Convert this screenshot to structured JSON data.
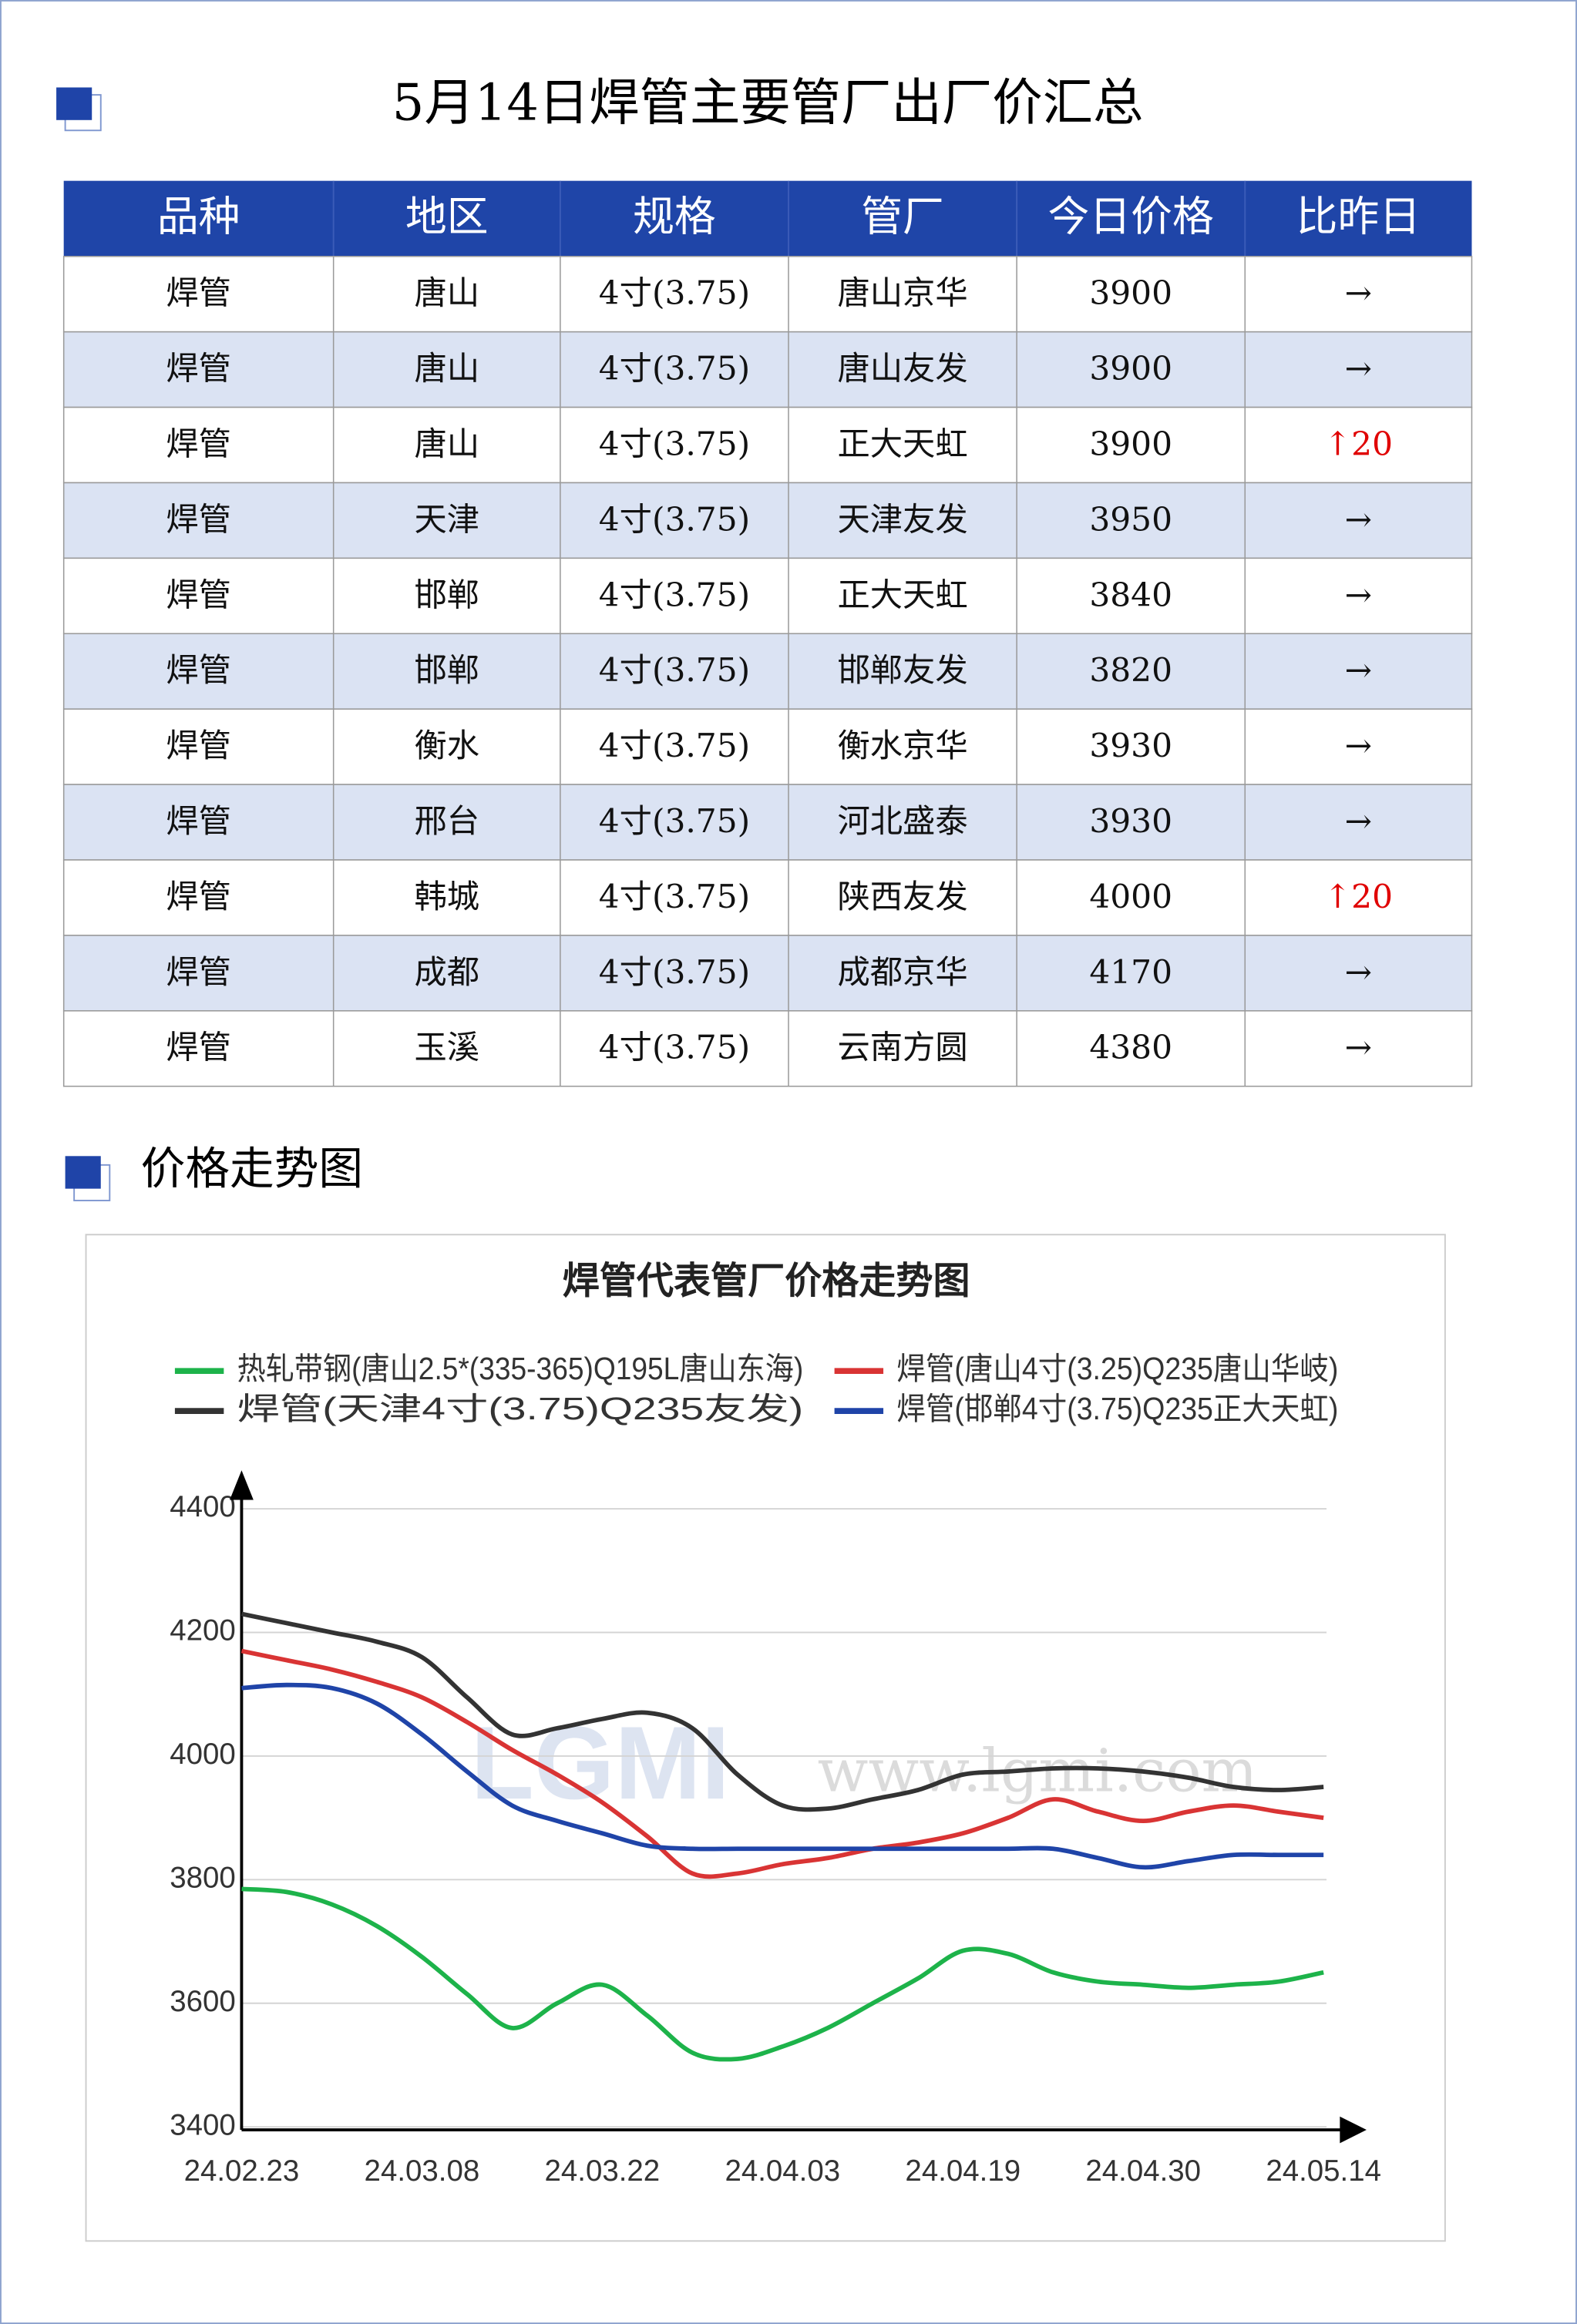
{
  "header": {
    "title": "5月14日焊管主要管厂出厂价汇总"
  },
  "table": {
    "columns": [
      "品种",
      "地区",
      "规格",
      "管厂",
      "今日价格",
      "比昨日"
    ],
    "rows": [
      [
        "焊管",
        "唐山",
        "4寸(3.75)",
        "唐山京华",
        3900,
        "→"
      ],
      [
        "焊管",
        "唐山",
        "4寸(3.75)",
        "唐山友发",
        3900,
        "→"
      ],
      [
        "焊管",
        "唐山",
        "4寸(3.75)",
        "正大天虹",
        3900,
        "↑20"
      ],
      [
        "焊管",
        "天津",
        "4寸(3.75)",
        "天津友发",
        3950,
        "→"
      ],
      [
        "焊管",
        "邯郸",
        "4寸(3.75)",
        "正大天虹",
        3840,
        "→"
      ],
      [
        "焊管",
        "邯郸",
        "4寸(3.75)",
        "邯郸友发",
        3820,
        "→"
      ],
      [
        "焊管",
        "衡水",
        "4寸(3.75)",
        "衡水京华",
        3930,
        "→"
      ],
      [
        "焊管",
        "邢台",
        "4寸(3.75)",
        "河北盛泰",
        3930,
        "→"
      ],
      [
        "焊管",
        "韩城",
        "4寸(3.75)",
        "陕西友发",
        4000,
        "↑20"
      ],
      [
        "焊管",
        "成都",
        "4寸(3.75)",
        "成都京华",
        4170,
        "→"
      ],
      [
        "焊管",
        "玉溪",
        "4寸(3.75)",
        "云南方圆",
        4380,
        "→"
      ]
    ]
  },
  "section": {
    "title": "价格走势图"
  },
  "chart_data": {
    "type": "line",
    "title": "焊管代表管厂价格走势图",
    "categories": [
      "24.02.23",
      null,
      null,
      null,
      "24.03.08",
      null,
      null,
      null,
      "24.03.22",
      null,
      null,
      null,
      "24.04.03",
      null,
      null,
      null,
      "24.04.19",
      null,
      null,
      null,
      "24.04.30",
      null,
      null,
      null,
      "24.05.14"
    ],
    "series": [
      {
        "name": "热轧带钢(唐山2.5*(335-365)Q195L唐山东海)",
        "color": "#1db34a",
        "values": [
          3785,
          3780,
          3760,
          3725,
          3675,
          3615,
          3560,
          3600,
          3630,
          3580,
          3520,
          3510,
          3530,
          3560,
          3600,
          3640,
          3685,
          3680,
          3650,
          3635,
          3630,
          3625,
          3630,
          3635,
          3650
        ]
      },
      {
        "name": "焊管(唐山4寸(3.25)Q235唐山华岐)",
        "color": "#d93434",
        "values": [
          4170,
          4155,
          4140,
          4120,
          4095,
          4055,
          4010,
          3970,
          3925,
          3870,
          3810,
          3810,
          3825,
          3835,
          3850,
          3860,
          3875,
          3900,
          3930,
          3910,
          3895,
          3910,
          3920,
          3910,
          3900
        ]
      },
      {
        "name": "焊管(天津4寸(3.75)Q235友发)",
        "color": "#333333",
        "values": [
          4230,
          4215,
          4200,
          4185,
          4160,
          4095,
          4035,
          4045,
          4060,
          4070,
          4045,
          3970,
          3920,
          3915,
          3930,
          3945,
          3970,
          3975,
          3980,
          3980,
          3975,
          3965,
          3950,
          3945,
          3950
        ]
      },
      {
        "name": "焊管(邯郸4寸(3.75)Q235正大天虹)",
        "color": "#1f44a8",
        "values": [
          4110,
          4115,
          4110,
          4085,
          4035,
          3975,
          3920,
          3895,
          3875,
          3855,
          3850,
          3850,
          3850,
          3850,
          3850,
          3850,
          3850,
          3850,
          3850,
          3835,
          3820,
          3830,
          3840,
          3840,
          3840
        ]
      }
    ],
    "ylim": [
      3400,
      4400
    ],
    "yticks": [
      3400,
      3600,
      3800,
      4000,
      4200,
      4400
    ],
    "grid": true,
    "watermark": [
      "LGMI",
      "www.lgmi.com"
    ]
  }
}
